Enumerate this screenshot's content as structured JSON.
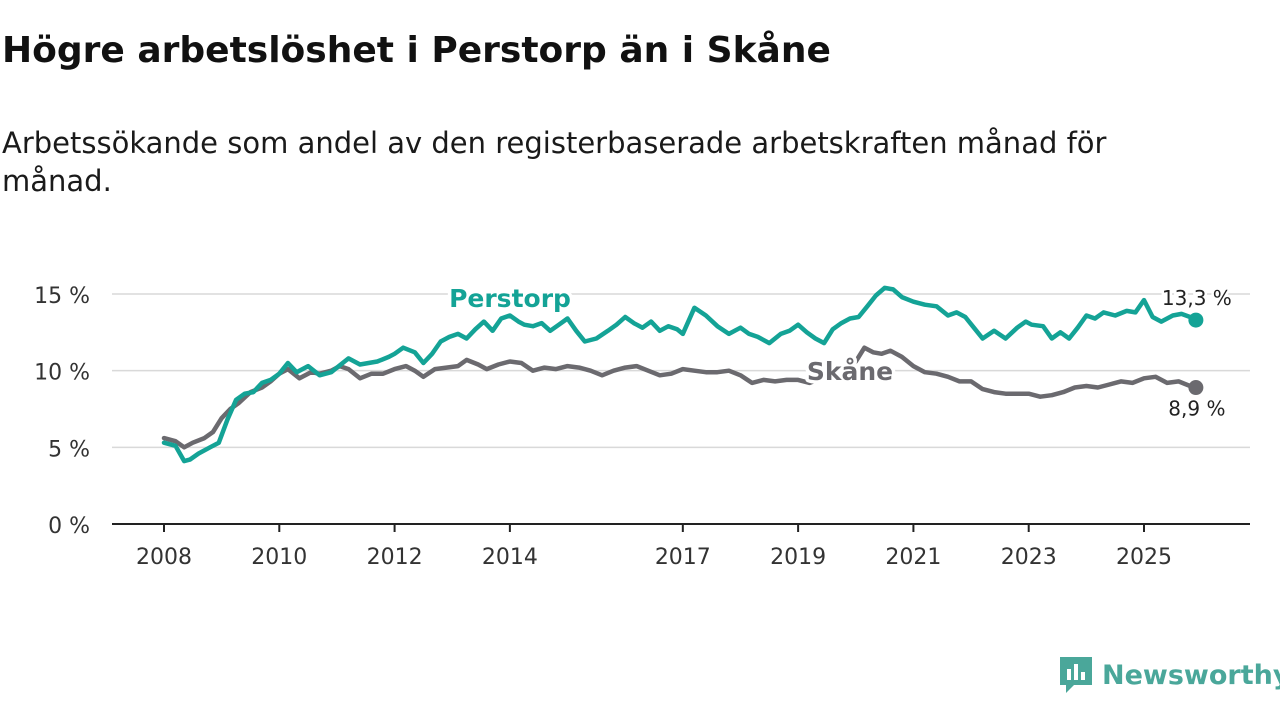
{
  "chart_data": {
    "type": "line",
    "title": "Högre arbetslöshet i Perstorp än i Skåne",
    "subtitle": "Arbetssökande som andel av den registerbaserade arbetskraften månad för månad.",
    "xlabel": "",
    "ylabel": "",
    "xlim": [
      2007.5,
      2026.9
    ],
    "ylim": [
      0,
      16
    ],
    "yticks": [
      {
        "value": 0,
        "label": "0 %"
      },
      {
        "value": 5,
        "label": "5 %"
      },
      {
        "value": 10,
        "label": "10 %"
      },
      {
        "value": 15,
        "label": "15 %"
      }
    ],
    "xticks": [
      {
        "value": 2008,
        "label": "2008"
      },
      {
        "value": 2010,
        "label": "2010"
      },
      {
        "value": 2012,
        "label": "2012"
      },
      {
        "value": 2014,
        "label": "2014"
      },
      {
        "value": 2017,
        "label": "2017"
      },
      {
        "value": 2019,
        "label": "2019"
      },
      {
        "value": 2021,
        "label": "2021"
      },
      {
        "value": 2023,
        "label": "2023"
      },
      {
        "value": 2025,
        "label": "2025"
      }
    ],
    "grid": true,
    "series": [
      {
        "name": "Perstorp",
        "color": "#14a396",
        "end_label": "13,3 %",
        "x": [
          2008.0,
          2008.2,
          2008.35,
          2008.45,
          2008.6,
          2008.8,
          2008.95,
          2009.1,
          2009.25,
          2009.4,
          2009.55,
          2009.7,
          2009.85,
          2010.0,
          2010.15,
          2010.3,
          2010.5,
          2010.7,
          2010.9,
          2011.0,
          2011.2,
          2011.4,
          2011.55,
          2011.7,
          2011.9,
          2012.0,
          2012.15,
          2012.35,
          2012.5,
          2012.65,
          2012.8,
          2012.95,
          2013.1,
          2013.25,
          2013.4,
          2013.55,
          2013.7,
          2013.85,
          2014.0,
          2014.15,
          2014.25,
          2014.4,
          2014.55,
          2014.7,
          2014.85,
          2015.0,
          2015.15,
          2015.3,
          2015.5,
          2015.7,
          2015.85,
          2016.0,
          2016.15,
          2016.3,
          2016.45,
          2016.6,
          2016.75,
          2016.9,
          2017.0,
          2017.2,
          2017.4,
          2017.6,
          2017.8,
          2018.0,
          2018.15,
          2018.3,
          2018.5,
          2018.7,
          2018.85,
          2019.0,
          2019.15,
          2019.3,
          2019.45,
          2019.6,
          2019.75,
          2019.9,
          2020.05,
          2020.2,
          2020.35,
          2020.5,
          2020.65,
          2020.8,
          2021.0,
          2021.2,
          2021.4,
          2021.6,
          2021.75,
          2021.9,
          2022.05,
          2022.2,
          2022.4,
          2022.6,
          2022.8,
          2022.95,
          2023.05,
          2023.25,
          2023.4,
          2023.55,
          2023.7,
          2023.85,
          2024.0,
          2024.15,
          2024.3,
          2024.5,
          2024.7,
          2024.85,
          2025.0,
          2025.15,
          2025.3,
          2025.5,
          2025.65,
          2025.8,
          2025.9
        ],
        "values": [
          5.3,
          5.1,
          4.1,
          4.2,
          4.6,
          5.0,
          5.3,
          6.8,
          8.1,
          8.5,
          8.6,
          9.2,
          9.4,
          9.8,
          10.5,
          9.9,
          10.3,
          9.7,
          9.9,
          10.2,
          10.8,
          10.4,
          10.5,
          10.6,
          10.9,
          11.1,
          11.5,
          11.2,
          10.5,
          11.1,
          11.9,
          12.2,
          12.4,
          12.1,
          12.7,
          13.2,
          12.6,
          13.4,
          13.6,
          13.2,
          13.0,
          12.9,
          13.1,
          12.6,
          13.0,
          13.4,
          12.6,
          11.9,
          12.1,
          12.6,
          13.0,
          13.5,
          13.1,
          12.8,
          13.2,
          12.6,
          12.9,
          12.7,
          12.4,
          14.1,
          13.6,
          12.9,
          12.4,
          12.8,
          12.4,
          12.2,
          11.8,
          12.4,
          12.6,
          13.0,
          12.5,
          12.1,
          11.8,
          12.7,
          13.1,
          13.4,
          13.5,
          14.2,
          14.9,
          15.4,
          15.3,
          14.8,
          14.5,
          14.3,
          14.2,
          13.6,
          13.8,
          13.5,
          12.8,
          12.1,
          12.6,
          12.1,
          12.8,
          13.2,
          13.0,
          12.9,
          12.1,
          12.5,
          12.1,
          12.8,
          13.6,
          13.4,
          13.8,
          13.6,
          13.9,
          13.8,
          14.6,
          13.5,
          13.2,
          13.6,
          13.7,
          13.5,
          13.3
        ]
      },
      {
        "name": "Skåne",
        "color": "#6b6a6f",
        "end_label": "8,9 %",
        "x": [
          2008.0,
          2008.2,
          2008.35,
          2008.5,
          2008.7,
          2008.85,
          2009.0,
          2009.15,
          2009.3,
          2009.5,
          2009.7,
          2009.85,
          2010.0,
          2010.15,
          2010.35,
          2010.55,
          2010.7,
          2010.9,
          2011.05,
          2011.2,
          2011.4,
          2011.6,
          2011.8,
          2012.0,
          2012.2,
          2012.35,
          2012.5,
          2012.7,
          2012.9,
          2013.1,
          2013.25,
          2013.45,
          2013.6,
          2013.8,
          2014.0,
          2014.2,
          2014.4,
          2014.6,
          2014.8,
          2015.0,
          2015.2,
          2015.4,
          2015.6,
          2015.8,
          2016.0,
          2016.2,
          2016.4,
          2016.6,
          2016.8,
          2017.0,
          2017.2,
          2017.4,
          2017.6,
          2017.8,
          2018.0,
          2018.2,
          2018.4,
          2018.6,
          2018.8,
          2019.0,
          2019.2,
          2019.4,
          2019.6,
          2019.8,
          2020.0,
          2020.15,
          2020.3,
          2020.45,
          2020.6,
          2020.8,
          2021.0,
          2021.2,
          2021.4,
          2021.6,
          2021.8,
          2022.0,
          2022.2,
          2022.4,
          2022.6,
          2022.8,
          2023.0,
          2023.2,
          2023.4,
          2023.6,
          2023.8,
          2024.0,
          2024.2,
          2024.4,
          2024.6,
          2024.8,
          2025.0,
          2025.2,
          2025.4,
          2025.6,
          2025.8,
          2025.9
        ],
        "values": [
          5.6,
          5.4,
          5.0,
          5.3,
          5.6,
          6.0,
          6.9,
          7.5,
          7.9,
          8.6,
          8.9,
          9.3,
          9.8,
          10.1,
          9.5,
          9.9,
          9.8,
          10.0,
          10.3,
          10.1,
          9.5,
          9.8,
          9.8,
          10.1,
          10.3,
          10.0,
          9.6,
          10.1,
          10.2,
          10.3,
          10.7,
          10.4,
          10.1,
          10.4,
          10.6,
          10.5,
          10.0,
          10.2,
          10.1,
          10.3,
          10.2,
          10.0,
          9.7,
          10.0,
          10.2,
          10.3,
          10.0,
          9.7,
          9.8,
          10.1,
          10.0,
          9.9,
          9.9,
          10.0,
          9.7,
          9.2,
          9.4,
          9.3,
          9.4,
          9.4,
          9.2,
          9.5,
          9.9,
          10.0,
          10.6,
          11.5,
          11.2,
          11.1,
          11.3,
          10.9,
          10.3,
          9.9,
          9.8,
          9.6,
          9.3,
          9.3,
          8.8,
          8.6,
          8.5,
          8.5,
          8.5,
          8.3,
          8.4,
          8.6,
          8.9,
          9.0,
          8.9,
          9.1,
          9.3,
          9.2,
          9.5,
          9.6,
          9.2,
          9.3,
          9.0,
          8.9
        ]
      }
    ]
  },
  "branding": {
    "name": "Newsworthy",
    "color": "#4aa79a"
  }
}
